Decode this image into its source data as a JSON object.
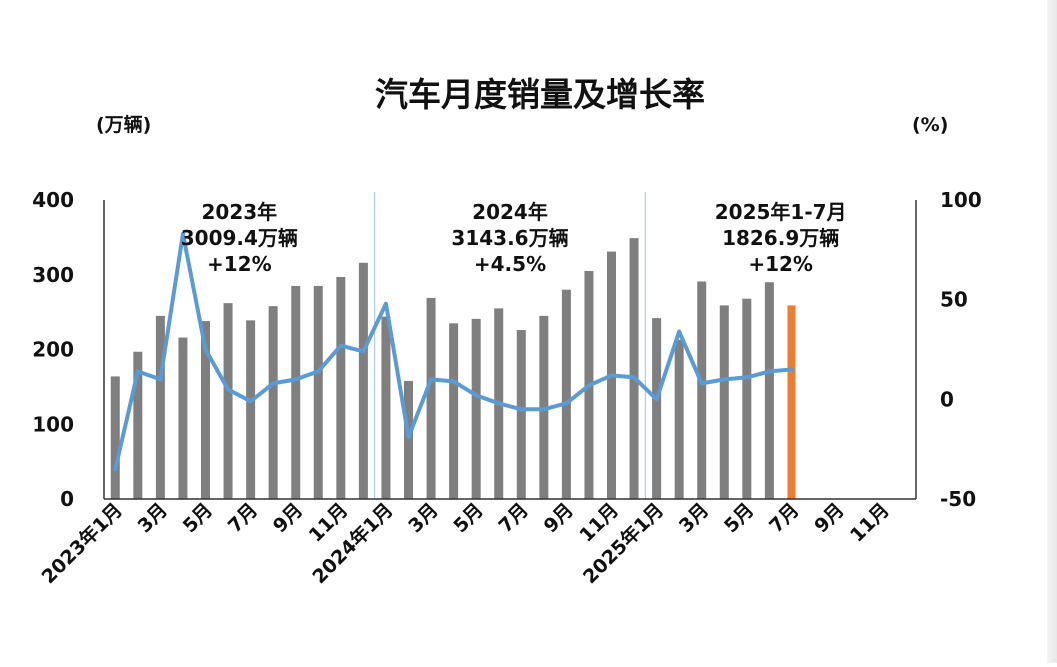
{
  "chart_data": {
    "type": "bar",
    "title": "汽车月度销量及增长率",
    "y_left_unit": "(万辆)",
    "y_right_unit": "(%)",
    "y_left_range": [
      0,
      400
    ],
    "y_left_ticks": [
      "0",
      "100",
      "200",
      "300",
      "400"
    ],
    "y_right_range": [
      -50,
      100
    ],
    "y_right_ticks": [
      "-50",
      "0",
      "50",
      "100"
    ],
    "x_tick_labels": [
      "2023年1月",
      "3月",
      "5月",
      "7月",
      "9月",
      "11月",
      "2024年1月",
      "3月",
      "5月",
      "7月",
      "9月",
      "11月",
      "2025年1月",
      "3月",
      "5月",
      "7月",
      "9月",
      "11月"
    ],
    "annotations": [
      {
        "lines": [
          "2023年",
          "3009.4万辆",
          "+12%"
        ]
      },
      {
        "lines": [
          "2024年",
          "3143.6万辆",
          "+4.5%"
        ]
      },
      {
        "lines": [
          "2025年1-7月",
          "1826.9万辆",
          "+12%"
        ]
      }
    ],
    "series": [
      {
        "type": "bar",
        "axis": "left",
        "values": [
          164,
          197,
          245,
          216,
          238,
          262,
          239,
          258,
          285,
          285,
          297,
          316,
          244,
          158,
          269,
          235,
          241,
          255,
          226,
          245,
          280,
          305,
          331,
          349,
          242,
          213,
          291,
          259,
          268,
          290,
          259
        ],
        "color": "#7f7f7f",
        "highlight_last_color": "#ed7d31"
      },
      {
        "type": "line",
        "axis": "right",
        "values": [
          -35,
          14,
          10,
          83,
          25,
          5,
          -1,
          8,
          10,
          14,
          27,
          24,
          48,
          -19,
          10,
          9,
          2,
          -2,
          -5,
          -5,
          -2,
          7,
          12,
          11,
          0,
          34,
          8,
          10,
          11,
          14,
          15
        ],
        "color": "#5b9bd5"
      }
    ],
    "slot_count": 36,
    "grid": false
  }
}
